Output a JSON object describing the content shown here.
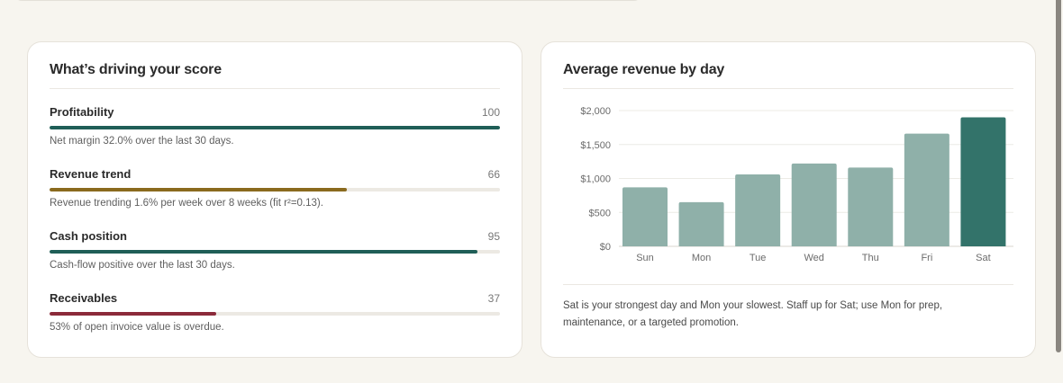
{
  "score_card": {
    "title": "What’s driving your score",
    "factors": [
      {
        "label": "Profitability",
        "score": "100",
        "value": 100,
        "color": "#1f5e57",
        "description": "Net margin 32.0% over the last 30 days."
      },
      {
        "label": "Revenue trend",
        "score": "66",
        "value": 66,
        "color": "#8a6a1e",
        "description": "Revenue trending 1.6% per week over 8 weeks (fit r²=0.13)."
      },
      {
        "label": "Cash position",
        "score": "95",
        "value": 95,
        "color": "#1f5e57",
        "description": "Cash-flow positive over the last 30 days."
      },
      {
        "label": "Receivables",
        "score": "37",
        "value": 37,
        "color": "#8b2a3a",
        "description": "53% of open invoice value is overdue."
      }
    ]
  },
  "revenue_card": {
    "title": "Average revenue by day",
    "note": "Sat is your strongest day and Mon your slowest. Staff up for Sat; use Mon for prep, maintenance, or a targeted promotion."
  },
  "chart_data": {
    "type": "bar",
    "title": "Average revenue by day",
    "categories": [
      "Sun",
      "Mon",
      "Tue",
      "Wed",
      "Thu",
      "Fri",
      "Sat"
    ],
    "values": [
      870,
      650,
      1060,
      1220,
      1160,
      1660,
      1900
    ],
    "ylim": [
      0,
      2000
    ],
    "yticks": [
      0,
      500,
      1000,
      1500,
      2000
    ],
    "ytick_labels": [
      "$0",
      "$500",
      "$1,000",
      "$1,500",
      "$2,000"
    ],
    "grid": true,
    "highlight_category": "Sat",
    "bar_color": "#8fb0a9",
    "highlight_color": "#33736a"
  }
}
